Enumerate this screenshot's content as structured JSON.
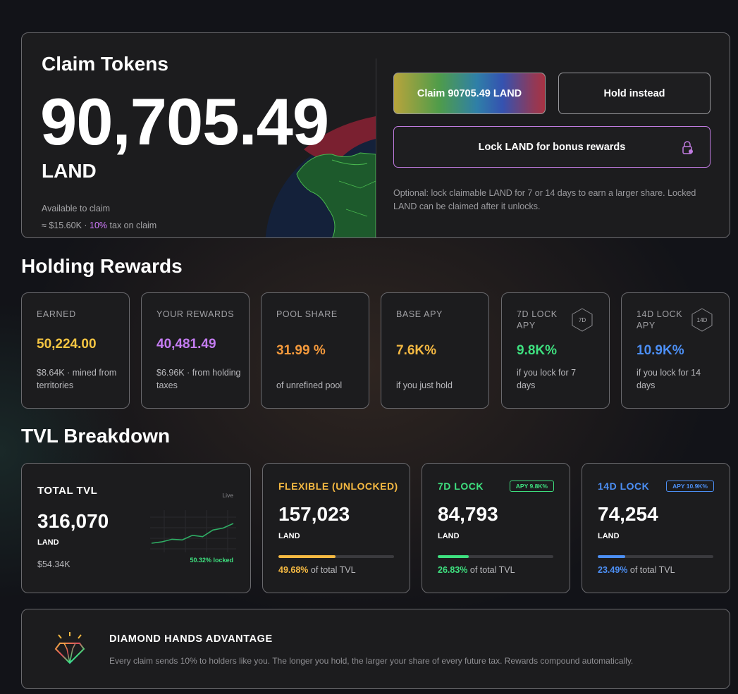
{
  "claim": {
    "title": "Claim Tokens",
    "amount": "90,705.49",
    "unit": "LAND",
    "available_label": "Available to claim",
    "usd_prefix": "≈ $15.60K · ",
    "tax_pct": "10%",
    "tax_suffix": " tax on claim",
    "claim_button": "Claim 90705.49 LAND",
    "hold_button": "Hold instead",
    "lock_button": "Lock LAND for bonus rewards",
    "lock_icon": "lock-icon",
    "note": "Optional: lock claimable LAND for 7 or 14 days to earn a larger share. Locked LAND can be claimed after it unlocks."
  },
  "holding": {
    "title": "Holding Rewards",
    "cards": [
      {
        "label": "EARNED",
        "value": "50,224.00",
        "sub": "$8.64K · mined from territories",
        "color": "#f5c542"
      },
      {
        "label": "YOUR REWARDS",
        "value": "40,481.49",
        "sub": "$6.96K · from holding taxes",
        "color": "#c47cf2"
      },
      {
        "label": "POOL SHARE",
        "value": "31.99 %",
        "sub": "of unrefined pool",
        "color": "#f59a3c"
      },
      {
        "label": "BASE APY",
        "value": "7.6K%",
        "sub": "if you just hold",
        "color": "#f5b942"
      },
      {
        "label": "7D LOCK APY",
        "value": "9.8K%",
        "sub": "if you lock for 7 days",
        "color": "#3ee07f",
        "badge": "7D"
      },
      {
        "label": "14D LOCK APY",
        "value": "10.9K%",
        "sub": "if you lock for 14 days",
        "color": "#4c8ff5",
        "badge": "14D"
      }
    ]
  },
  "tvl": {
    "title": "TVL Breakdown",
    "total": {
      "label": "TOTAL TVL",
      "value": "316,070",
      "unit": "LAND",
      "usd": "$54.34K",
      "live": "Live",
      "locked": "50.32% locked",
      "spark": [
        40,
        42,
        46,
        45,
        52,
        50,
        60,
        63,
        70
      ]
    },
    "pools": [
      {
        "label": "FLEXIBLE (UNLOCKED)",
        "value": "157,023",
        "unit": "LAND",
        "pct": "49.68%",
        "suffix": " of total TVL",
        "fill": 0.4968,
        "color": "#f5b942"
      },
      {
        "label": "7D LOCK",
        "value": "84,793",
        "unit": "LAND",
        "pct": "26.83%",
        "suffix": " of total TVL",
        "fill": 0.2683,
        "color": "#3ee07f",
        "apy": "APY 9.8K%"
      },
      {
        "label": "14D LOCK",
        "value": "74,254",
        "unit": "LAND",
        "pct": "23.49%",
        "suffix": " of total TVL",
        "fill": 0.2349,
        "color": "#4c8ff5",
        "apy": "APY 10.9K%"
      }
    ]
  },
  "diamond": {
    "icon": "diamond-icon",
    "title": "DIAMOND HANDS ADVANTAGE",
    "text": "Every claim sends 10% to holders like you. The longer you hold, the larger your share of every future tax. Rewards compound automatically."
  }
}
